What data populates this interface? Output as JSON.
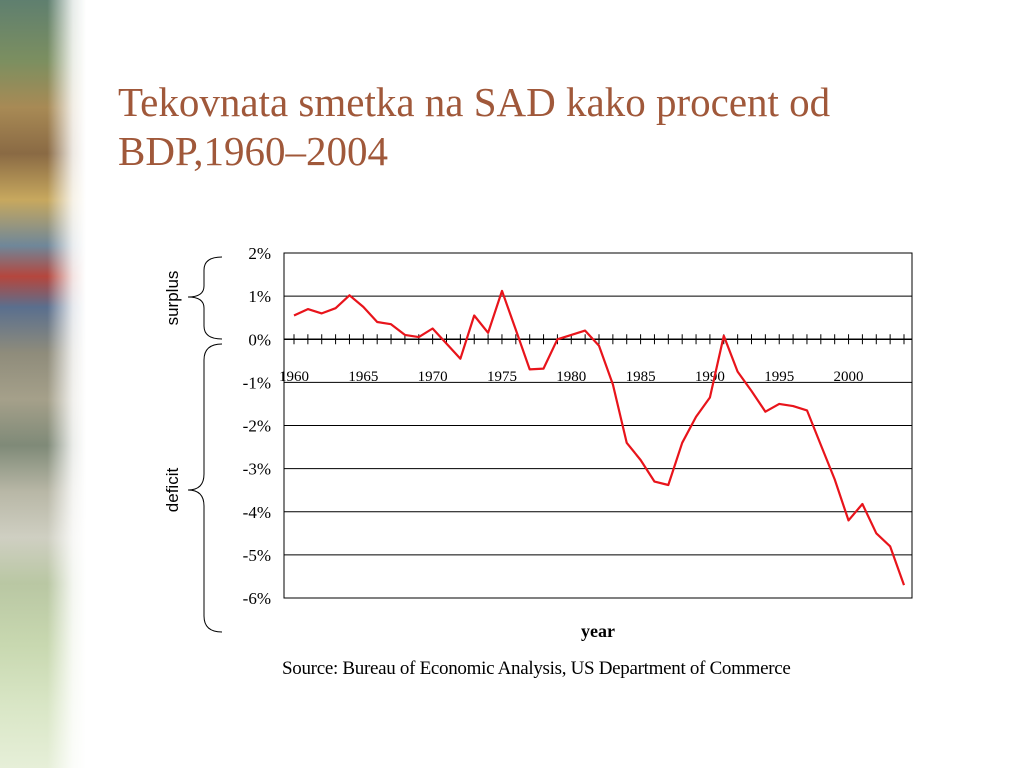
{
  "slide": {
    "title_line1": "Tekovnata smetka na SAD kako procent od",
    "title_line2": "BDP,1960–2004",
    "source": "Source:  Bureau of Economic Analysis, US Department of Commerce"
  },
  "braces": {
    "surplus_label": "surplus",
    "deficit_label": "deficit"
  },
  "chart_data": {
    "type": "line",
    "xlabel": "year",
    "ylabel": "",
    "ylim": [
      -6,
      2
    ],
    "xlim": [
      1960,
      2004
    ],
    "y_ticks": [
      2,
      1,
      0,
      -1,
      -2,
      -3,
      -4,
      -5,
      -6
    ],
    "y_tick_labels": [
      "2%",
      "1%",
      "0%",
      "-1%",
      "-2%",
      "-3%",
      "-4%",
      "-5%",
      "-6%"
    ],
    "x_tick_labels": [
      "1960",
      "1965",
      "1970",
      "1975",
      "1980",
      "1985",
      "1990",
      "1995",
      "2000"
    ],
    "grid": true,
    "line_color": "#e8141b",
    "series": [
      {
        "x": [
          1960,
          1961,
          1962,
          1963,
          1964,
          1965,
          1966,
          1967,
          1968,
          1969,
          1970,
          1971,
          1972,
          1973,
          1974,
          1975,
          1976,
          1977,
          1978,
          1979,
          1980,
          1981,
          1982,
          1983,
          1984,
          1985,
          1986,
          1987,
          1988,
          1989,
          1990,
          1991,
          1992,
          1993,
          1994,
          1995,
          1996,
          1997,
          1998,
          1999,
          2000,
          2001,
          2002,
          2003,
          2004
        ],
        "values": [
          0.55,
          0.7,
          0.6,
          0.72,
          1.02,
          0.75,
          0.4,
          0.35,
          0.1,
          0.05,
          0.25,
          -0.1,
          -0.45,
          0.55,
          0.15,
          1.12,
          0.22,
          -0.7,
          -0.68,
          0.0,
          0.1,
          0.2,
          -0.15,
          -1.05,
          -2.4,
          -2.8,
          -3.3,
          -3.38,
          -2.4,
          -1.8,
          -1.35,
          0.08,
          -0.75,
          -1.2,
          -1.68,
          -1.5,
          -1.55,
          -1.65,
          -2.45,
          -3.25,
          -4.2,
          -3.82,
          -4.5,
          -4.8,
          -5.7
        ]
      }
    ]
  }
}
